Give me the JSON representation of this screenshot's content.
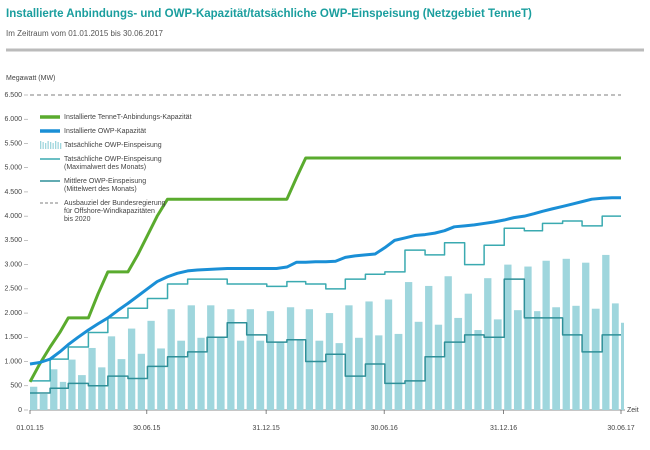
{
  "chart_data": {
    "type": "line",
    "title": "Installierte Anbindungs- und OWP-Kapazität/tatsächliche OWP-Einspeisung (Netzgebiet TenneT)",
    "subtitle": "Im Zeitraum vom 01.01.2015 bis 30.06.2017",
    "y_label": "Megawatt (MW)",
    "x_label": "Zeit",
    "x": [
      "2015-01-01",
      "2015-01-16",
      "2015-02-01",
      "2015-02-16",
      "2015-03-01",
      "2015-03-16",
      "2015-04-01",
      "2015-04-16",
      "2015-05-01",
      "2015-05-16",
      "2015-06-01",
      "2015-06-16",
      "2015-07-01",
      "2015-07-16",
      "2015-08-01",
      "2015-08-16",
      "2015-09-01",
      "2015-09-16",
      "2015-10-01",
      "2015-10-16",
      "2015-11-01",
      "2015-11-16",
      "2015-12-01",
      "2015-12-16",
      "2016-01-01",
      "2016-01-16",
      "2016-02-01",
      "2016-02-16",
      "2016-03-01",
      "2016-03-16",
      "2016-04-01",
      "2016-04-16",
      "2016-05-01",
      "2016-05-16",
      "2016-06-01",
      "2016-06-16",
      "2016-07-01",
      "2016-07-16",
      "2016-08-01",
      "2016-08-16",
      "2016-09-01",
      "2016-09-16",
      "2016-10-01",
      "2016-10-16",
      "2016-11-01",
      "2016-11-16",
      "2016-12-01",
      "2016-12-16",
      "2017-01-01",
      "2017-01-16",
      "2017-02-01",
      "2017-02-16",
      "2017-03-01",
      "2017-03-16",
      "2017-04-01",
      "2017-04-16",
      "2017-05-01",
      "2017-05-16",
      "2017-06-01",
      "2017-06-16",
      "2017-06-30"
    ],
    "xlim": [
      "2015-01-01",
      "2017-06-30"
    ],
    "xticks": [
      {
        "value": "2015-01-01",
        "label": "01.01.15"
      },
      {
        "value": "2015-06-30",
        "label": "30.06.15"
      },
      {
        "value": "2015-12-31",
        "label": "31.12.15"
      },
      {
        "value": "2016-06-30",
        "label": "30.06.16"
      },
      {
        "value": "2016-12-31",
        "label": "31.12.16"
      },
      {
        "value": "2017-06-30",
        "label": "30.06.17"
      }
    ],
    "ylim": [
      0,
      6500
    ],
    "yticks": [
      0,
      500,
      {
        "value": 1000,
        "label": "1.000"
      },
      {
        "value": 1500,
        "label": "1.500"
      },
      {
        "value": 2000,
        "label": "2.000"
      },
      {
        "value": 2500,
        "label": "2.500"
      },
      {
        "value": 3000,
        "label": "3.000"
      },
      {
        "value": 3500,
        "label": "3.500"
      },
      {
        "value": 4000,
        "label": "4.000"
      },
      {
        "value": 4500,
        "label": "4.500"
      },
      {
        "value": 5000,
        "label": "5.000"
      },
      {
        "value": 5500,
        "label": "5.500"
      },
      {
        "value": 6000,
        "label": "6.000"
      },
      {
        "value": 6500,
        "label": "6.500"
      }
    ],
    "grid": false,
    "legend": "top-left",
    "series": [
      {
        "name": "Installierte TenneT-Anbindungs-Kapazität",
        "color": "#5aab2e",
        "style": "line",
        "width": 3,
        "values": [
          580,
          950,
          1300,
          1600,
          1900,
          1900,
          1900,
          2400,
          2850,
          2850,
          2850,
          3200,
          3600,
          4000,
          4350,
          4350,
          4350,
          4350,
          4350,
          4350,
          4350,
          4350,
          4350,
          4350,
          4350,
          4350,
          4350,
          4800,
          5200,
          5200,
          5200,
          5200,
          5200,
          5200,
          5200,
          5200,
          5200,
          5200,
          5200,
          5200,
          5200,
          5200,
          5200,
          5200,
          5200,
          5200,
          5200,
          5200,
          5200,
          5200,
          5200,
          5200,
          5200,
          5200,
          5200,
          5200,
          5200,
          5200,
          5200,
          5200,
          5200
        ]
      },
      {
        "name": "Installierte OWP-Kapazität",
        "color": "#1a8fd6",
        "style": "line",
        "width": 3,
        "values": [
          950,
          980,
          1050,
          1200,
          1350,
          1500,
          1650,
          1780,
          1900,
          2050,
          2200,
          2350,
          2500,
          2650,
          2750,
          2820,
          2870,
          2890,
          2900,
          2910,
          2920,
          2920,
          2920,
          2920,
          2920,
          2920,
          2950,
          3050,
          3050,
          3060,
          3060,
          3070,
          3150,
          3180,
          3200,
          3220,
          3350,
          3500,
          3550,
          3600,
          3620,
          3650,
          3700,
          3780,
          3800,
          3820,
          3850,
          3880,
          3920,
          3970,
          4000,
          4050,
          4100,
          4150,
          4200,
          4250,
          4300,
          4350,
          4370,
          4380,
          4380
        ]
      },
      {
        "name": "Tatsächliche OWP-Einspeisung",
        "color": "#9fd6dd",
        "style": "bars",
        "values": [
          480,
          330,
          840,
          580,
          1040,
          720,
          1280,
          880,
          1520,
          1050,
          1680,
          1160,
          1840,
          1270,
          2080,
          1430,
          2160,
          1490,
          2160,
          1490,
          2080,
          1430,
          2080,
          1430,
          2040,
          1400,
          2120,
          1460,
          2080,
          1430,
          2000,
          1380,
          2160,
          1490,
          2240,
          1540,
          2280,
          1570,
          2640,
          1820,
          2560,
          1760,
          2760,
          1900,
          2400,
          1650,
          2720,
          1870,
          3000,
          2060,
          2960,
          2040,
          3080,
          2120,
          3120,
          2150,
          3040,
          2090,
          3200,
          2200,
          1800
        ]
      },
      {
        "name": "Tatsächliche OWP-Einspeisung\n(Maximalwert des Monats)",
        "color": "#3aaab0",
        "style": "step",
        "width": 1.5,
        "values": [
          600,
          600,
          1050,
          1050,
          1300,
          1300,
          1600,
          1600,
          1900,
          1900,
          2100,
          2100,
          2300,
          2300,
          2600,
          2600,
          2700,
          2700,
          2700,
          2700,
          2600,
          2600,
          2600,
          2600,
          2550,
          2550,
          2650,
          2650,
          2600,
          2600,
          2500,
          2500,
          2700,
          2700,
          2800,
          2800,
          2850,
          2850,
          3300,
          3300,
          3200,
          3200,
          3450,
          3450,
          3000,
          3000,
          3400,
          3400,
          3750,
          3750,
          3700,
          3700,
          3850,
          3850,
          3900,
          3900,
          3800,
          3800,
          4000,
          4000,
          4000
        ]
      },
      {
        "name": "Mittlere OWP-Einspeisung\n(Mittelwert des Monats)",
        "color": "#2e8f98",
        "style": "step",
        "width": 1.5,
        "values": [
          350,
          350,
          450,
          450,
          550,
          550,
          500,
          500,
          700,
          700,
          650,
          650,
          900,
          900,
          1100,
          1100,
          1200,
          1200,
          1500,
          1500,
          1800,
          1800,
          1550,
          1550,
          1400,
          1400,
          1450,
          1450,
          1000,
          1000,
          1150,
          1150,
          700,
          700,
          950,
          950,
          550,
          550,
          600,
          600,
          1100,
          1100,
          1400,
          1400,
          1550,
          1550,
          1500,
          1500,
          2700,
          2700,
          1900,
          1900,
          1900,
          1900,
          1550,
          1550,
          1200,
          1200,
          1550,
          1550,
          1550
        ]
      }
    ],
    "reference_lines": [
      {
        "name": "Ausbauziel der Bundesregierung\nfür Offshore-Windkapazitäten\nbis 2020",
        "value": 6500,
        "color": "#999999"
      }
    ]
  }
}
